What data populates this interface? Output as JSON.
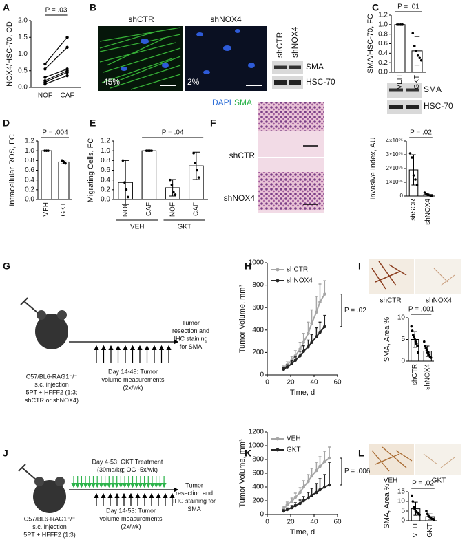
{
  "panels": {
    "letters": [
      "A",
      "B",
      "C",
      "D",
      "E",
      "F",
      "G",
      "H",
      "I",
      "J",
      "K",
      "L"
    ],
    "b": {
      "left_label": "shCTR",
      "right_label": "shNOX4",
      "left_pct": "45%",
      "right_pct": "2%",
      "stain_dapi": "DAPI",
      "stain_sma": "SMA",
      "blot_lanes": [
        "shCTR",
        "shNOX4"
      ],
      "blot_bands": [
        "SMA",
        "HSC-70"
      ]
    },
    "c_blot_bands": [
      "SMA",
      "HSC-70"
    ],
    "f_images": [
      "shCTR",
      "shNOX4"
    ],
    "g": {
      "mouse": [
        "C57/BL6-RAG1⁻/⁻",
        "s.c. injection",
        "5PT + HFFF2 (1:3;",
        "shCTR or shNOX4)"
      ],
      "measure": [
        "Day 14-49: Tumor",
        "volume measurements",
        "(2x/wk)"
      ],
      "endpoint": [
        "Tumor",
        "resection and",
        "IHC staining",
        "for SMA"
      ]
    },
    "i_images": [
      "shCTR",
      "shNOX4"
    ],
    "j": {
      "treatment": [
        "Day 4-53: GKT Treatment",
        "(30mg/kg; OG -5x/wk)"
      ],
      "mouse": [
        "C57/BL6-RAG1⁻/⁻",
        "s.c. injection",
        "5PT + HFFF2 (1:3)"
      ],
      "measure": [
        "Day 14-53: Tumor",
        "volume measurements",
        "(2x/wk)"
      ],
      "endpoint": [
        "Tumor",
        "resection and",
        "IHC staining for",
        "SMA"
      ]
    },
    "l_images": [
      "VEH",
      "GKT"
    ]
  },
  "chart_data": [
    {
      "type": "paired",
      "ylabel": "NOX4/HSC-70, OD",
      "categories": [
        "NOF",
        "CAF"
      ],
      "annotation": "P = .03",
      "ylim": [
        0,
        2.0
      ],
      "yticks": [
        {
          "value": 0,
          "label": "0.0"
        },
        {
          "value": 0.5,
          "label": "0.5"
        },
        {
          "value": 1,
          "label": "1.0"
        },
        {
          "value": 1.5,
          "label": "1.5"
        },
        {
          "value": 2,
          "label": "2.0"
        }
      ],
      "series": [
        {
          "color": "#000",
          "values": [
            0.7,
            1.5
          ]
        },
        {
          "color": "#000",
          "values": [
            0.55,
            1.2
          ]
        },
        {
          "color": "#000",
          "values": [
            0.3,
            0.55
          ]
        },
        {
          "color": "#000",
          "values": [
            0.2,
            0.5
          ]
        },
        {
          "color": "#000",
          "values": [
            0.15,
            0.45
          ]
        },
        {
          "color": "#000",
          "values": [
            0.1,
            0.35
          ]
        }
      ]
    },
    {
      "type": "bar",
      "ylabel": "SMA/HSC-70, FC",
      "categories": [
        "VEH",
        "GKT"
      ],
      "values": [
        1.0,
        0.45
      ],
      "errors": [
        0,
        0.3
      ],
      "points": [
        [
          1,
          1,
          1,
          1
        ],
        [
          0.82,
          0.55,
          0.45,
          0.35,
          0.3,
          0.25
        ]
      ],
      "annotation": "P = .01",
      "color": "#ffffff",
      "ylim": [
        0,
        1.2
      ],
      "yticks": [
        {
          "value": 0,
          "label": "0.0"
        },
        {
          "value": 0.2,
          "label": "0.2"
        },
        {
          "value": 0.4,
          "label": "0.4"
        },
        {
          "value": 0.6,
          "label": "0.6"
        },
        {
          "value": 0.8,
          "label": "0.8"
        },
        {
          "value": 1,
          "label": "1.0"
        },
        {
          "value": 1.2,
          "label": "1.2"
        }
      ]
    },
    {
      "type": "bar",
      "ylabel": "Intracellular ROS, FC",
      "categories": [
        "VEH",
        "GKT"
      ],
      "values": [
        1.0,
        0.77
      ],
      "errors": [
        0,
        0.04
      ],
      "points": [
        [
          1,
          1,
          1
        ],
        [
          0.8,
          0.77,
          0.74
        ]
      ],
      "annotation": "P = .004",
      "color": "#ffffff",
      "ylim": [
        0,
        1.2
      ],
      "yticks": [
        {
          "value": 0,
          "label": "0.0"
        },
        {
          "value": 0.2,
          "label": "0.2"
        },
        {
          "value": 0.4,
          "label": "0.4"
        },
        {
          "value": 0.6,
          "label": "0.6"
        },
        {
          "value": 0.8,
          "label": "0.8"
        },
        {
          "value": 1,
          "label": "1.0"
        },
        {
          "value": 1.2,
          "label": "1.2"
        }
      ]
    },
    {
      "type": "bar",
      "ylabel": "Migrating Cells, FC",
      "categories": [
        "NOF",
        "CAF",
        "NOF",
        "CAF"
      ],
      "groups": [
        "VEH",
        "GKT"
      ],
      "values": [
        0.35,
        1.0,
        0.24,
        0.69
      ],
      "errors": [
        0.45,
        0,
        0.17,
        0.28
      ],
      "points": [
        [
          0.8,
          0.35,
          0.2,
          0.05
        ],
        [
          1,
          1,
          1,
          1
        ],
        [
          0.4,
          0.3,
          0.15,
          0.1
        ],
        [
          0.95,
          0.75,
          0.6,
          0.45
        ]
      ],
      "annotation": "P = .04",
      "color": "#ffffff",
      "ylim": [
        0,
        1.2
      ],
      "yticks": [
        {
          "value": 0,
          "label": "0.0"
        },
        {
          "value": 0.2,
          "label": "0.2"
        },
        {
          "value": 0.4,
          "label": "0.4"
        },
        {
          "value": 0.6,
          "label": "0.6"
        },
        {
          "value": 0.8,
          "label": "0.8"
        },
        {
          "value": 1,
          "label": "1.0"
        },
        {
          "value": 1.2,
          "label": "1.2"
        }
      ]
    },
    {
      "type": "bar",
      "ylabel": "Invasive Index, AU",
      "categories": [
        "shSCR",
        "shNOX4"
      ],
      "values": [
        190000,
        11000
      ],
      "errors": [
        110000,
        10000
      ],
      "points": [
        [
          310000,
          280000,
          150000,
          120000,
          80000
        ],
        [
          25000,
          15000,
          10000,
          5000,
          0
        ]
      ],
      "annotation": "P = .02",
      "color": "#ffffff",
      "ylim": [
        0,
        400000
      ],
      "yticks": [
        0,
        {
          "value": 100000,
          "label": "1×10⁰⁵"
        },
        {
          "value": 200000,
          "label": "2×10⁰⁵"
        },
        {
          "value": 300000,
          "label": "3×10⁰⁵"
        },
        {
          "value": 400000,
          "label": "4×10⁰⁵"
        }
      ]
    },
    {
      "type": "line",
      "ylabel": "Tumor Volume, mm³",
      "xlabel": "Time, d",
      "annotation": "P = .02",
      "x": [
        14,
        17,
        21,
        24,
        28,
        31,
        35,
        38,
        42,
        45,
        49
      ],
      "xlim": [
        0,
        60
      ],
      "xticks": [
        0,
        20,
        40,
        60
      ],
      "ylim": [
        0,
        1000
      ],
      "yticks": [
        0,
        200,
        400,
        600,
        800,
        1000
      ],
      "series": [
        {
          "name": "shCTR",
          "color": "#a6a6a6",
          "values": [
            60,
            90,
            130,
            170,
            230,
            290,
            370,
            460,
            560,
            650,
            720
          ],
          "errors": [
            20,
            25,
            35,
            45,
            60,
            80,
            100,
            120,
            140,
            160,
            120
          ]
        },
        {
          "name": "shNOX4",
          "color": "#262626",
          "values": [
            50,
            70,
            100,
            130,
            170,
            210,
            250,
            290,
            340,
            380,
            430
          ],
          "errors": [
            15,
            20,
            25,
            30,
            40,
            50,
            60,
            70,
            80,
            90,
            100
          ]
        }
      ]
    },
    {
      "type": "bar",
      "ylabel": "SMA, Area %",
      "categories": [
        "shCTR",
        "shNOX4"
      ],
      "values": [
        5.0,
        2.3
      ],
      "errors": [
        1.8,
        1.2
      ],
      "points": [
        [
          8,
          7,
          6,
          5.5,
          5,
          4.5,
          4,
          3.5,
          2
        ],
        [
          4.5,
          3.5,
          3,
          2.5,
          2,
          2,
          1.5,
          1,
          0.8
        ]
      ],
      "annotation": "P = .001",
      "color": "#ffffff",
      "ylim": [
        0,
        10
      ],
      "yticks": [
        0,
        5,
        10
      ]
    },
    {
      "type": "line",
      "ylabel": "Tumor Volume, mm³",
      "xlabel": "Time, d",
      "annotation": "P = .006",
      "x": [
        14,
        17,
        21,
        24,
        28,
        31,
        35,
        38,
        42,
        45,
        49,
        53
      ],
      "xlim": [
        0,
        60
      ],
      "xticks": [
        0,
        20,
        40,
        60
      ],
      "ylim": [
        0,
        1200
      ],
      "yticks": [
        0,
        200,
        400,
        600,
        800,
        1000,
        1200
      ],
      "series": [
        {
          "name": "VEH",
          "color": "#a6a6a6",
          "values": [
            90,
            140,
            190,
            250,
            320,
            400,
            480,
            560,
            640,
            700,
            770,
            820
          ],
          "errors": [
            30,
            40,
            50,
            60,
            70,
            90,
            100,
            110,
            120,
            140,
            150,
            160
          ]
        },
        {
          "name": "GKT",
          "color": "#262626",
          "values": [
            50,
            70,
            100,
            130,
            160,
            200,
            240,
            280,
            320,
            360,
            400,
            430
          ],
          "errors": [
            20,
            25,
            30,
            40,
            50,
            60,
            80,
            100,
            130,
            160,
            180,
            330
          ]
        }
      ]
    },
    {
      "type": "bar",
      "ylabel": "SMA, Area %",
      "categories": [
        "VEH",
        "GKT"
      ],
      "values": [
        6.2,
        2.1
      ],
      "errors": [
        3.4,
        1.4
      ],
      "points": [
        [
          13,
          10,
          7,
          6,
          5,
          4.5,
          4,
          3.5,
          3
        ],
        [
          5,
          3.5,
          2.5,
          2,
          1.5,
          1,
          1,
          0.5
        ]
      ],
      "annotation": "P = .02",
      "color": "#ffffff",
      "ylim": [
        0,
        15
      ],
      "yticks": [
        0,
        5,
        10,
        15
      ]
    }
  ]
}
